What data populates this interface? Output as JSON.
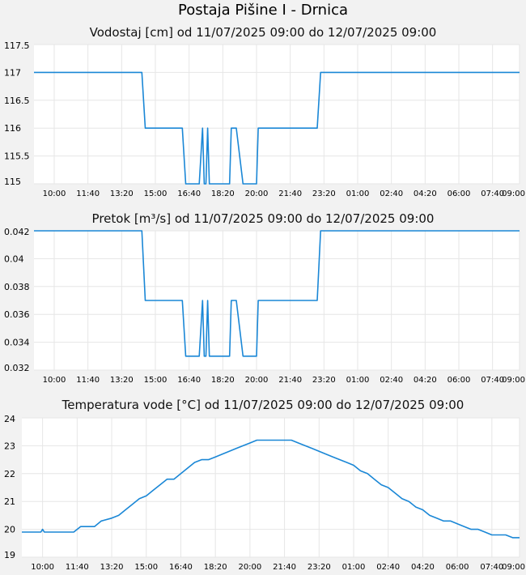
{
  "page": {
    "title": "Postaja Pišine I - Drnica"
  },
  "colors": {
    "line": "#1a87d6",
    "grid": "#e6e6e6",
    "plot_bg": "#ffffff",
    "page_bg": "#f2f2f2"
  },
  "chart_data": [
    {
      "type": "line",
      "title": "Vodostaj [cm] od 11/07/2025 09:00 do 12/07/2025 09:00",
      "ylim": [
        115,
        117.5
      ],
      "yticks": [
        115,
        115.5,
        116,
        116.5,
        117,
        117.5
      ],
      "ytick_labels": [
        "115",
        "115.5",
        "116",
        "116.5",
        "117",
        "117.5"
      ],
      "xlim": [
        0,
        1440
      ],
      "xticks": [
        60,
        160,
        260,
        360,
        460,
        560,
        660,
        760,
        860,
        960,
        1060,
        1160,
        1260,
        1360,
        1440
      ],
      "xtick_labels": [
        "10:00",
        "11:40",
        "13:20",
        "15:00",
        "16:40",
        "18:20",
        "20:00",
        "21:40",
        "23:20",
        "01:00",
        "02:40",
        "04:20",
        "06:00",
        "07:40",
        "09:00"
      ],
      "grid": true,
      "series": [
        {
          "x": [
            0,
            320,
            330,
            440,
            450,
            490,
            500,
            505,
            510,
            515,
            520,
            525,
            530,
            580,
            585,
            595,
            600,
            620,
            625,
            660,
            665,
            840,
            850,
            1440
          ],
          "values": [
            117,
            117,
            116,
            116,
            115,
            115,
            116,
            115,
            115,
            116,
            115,
            115,
            115,
            115,
            116,
            116,
            116,
            115,
            115,
            115,
            116,
            116,
            117,
            117
          ]
        }
      ]
    },
    {
      "type": "line",
      "title": "Pretok [m³/s] od 11/07/2025 09:00 do 12/07/2025 09:00",
      "ylim": [
        0.032,
        0.042
      ],
      "yticks": [
        0.032,
        0.034,
        0.036,
        0.038,
        0.04,
        0.042
      ],
      "ytick_labels": [
        "0.032",
        "0.034",
        "0.036",
        "0.038",
        "0.04",
        "0.042"
      ],
      "xlim": [
        0,
        1440
      ],
      "xticks": [
        60,
        160,
        260,
        360,
        460,
        560,
        660,
        760,
        860,
        960,
        1060,
        1160,
        1260,
        1360,
        1440
      ],
      "xtick_labels": [
        "10:00",
        "11:40",
        "13:20",
        "15:00",
        "16:40",
        "18:20",
        "20:00",
        "21:40",
        "23:20",
        "01:00",
        "02:40",
        "04:20",
        "06:00",
        "07:40",
        "09:00"
      ],
      "grid": true,
      "series": [
        {
          "x": [
            0,
            320,
            330,
            440,
            450,
            490,
            500,
            505,
            510,
            515,
            520,
            525,
            530,
            580,
            585,
            595,
            600,
            620,
            625,
            660,
            665,
            840,
            850,
            1440
          ],
          "values": [
            0.042,
            0.042,
            0.037,
            0.037,
            0.033,
            0.033,
            0.037,
            0.033,
            0.033,
            0.037,
            0.033,
            0.033,
            0.033,
            0.033,
            0.037,
            0.037,
            0.037,
            0.033,
            0.033,
            0.033,
            0.037,
            0.037,
            0.042,
            0.042
          ]
        }
      ]
    },
    {
      "type": "line",
      "title": "Temperatura vode [°C] od 11/07/2025 09:00 do 12/07/2025 09:00",
      "ylim": [
        19,
        24
      ],
      "yticks": [
        19,
        20,
        21,
        22,
        23,
        24
      ],
      "ytick_labels": [
        "19",
        "20",
        "21",
        "22",
        "23",
        "24"
      ],
      "xlim": [
        0,
        1440
      ],
      "xticks": [
        60,
        160,
        260,
        360,
        460,
        560,
        660,
        760,
        860,
        960,
        1060,
        1160,
        1260,
        1360,
        1440
      ],
      "xtick_labels": [
        "10:00",
        "11:40",
        "13:20",
        "15:00",
        "16:40",
        "18:20",
        "20:00",
        "21:40",
        "23:20",
        "01:00",
        "02:40",
        "04:20",
        "06:00",
        "07:40",
        "09:00"
      ],
      "grid": true,
      "series": [
        {
          "x": [
            0,
            55,
            60,
            65,
            150,
            170,
            210,
            230,
            260,
            280,
            300,
            320,
            340,
            360,
            380,
            400,
            420,
            440,
            460,
            480,
            500,
            520,
            540,
            560,
            580,
            600,
            620,
            640,
            660,
            680,
            700,
            720,
            740,
            760,
            780,
            800,
            820,
            840,
            860,
            880,
            900,
            920,
            940,
            960,
            980,
            1000,
            1020,
            1040,
            1060,
            1080,
            1100,
            1120,
            1140,
            1160,
            1180,
            1200,
            1220,
            1240,
            1260,
            1280,
            1300,
            1320,
            1340,
            1360,
            1380,
            1400,
            1420,
            1440
          ],
          "values": [
            19.9,
            19.9,
            20.0,
            19.9,
            19.9,
            20.1,
            20.1,
            20.3,
            20.4,
            20.5,
            20.7,
            20.9,
            21.1,
            21.2,
            21.4,
            21.6,
            21.8,
            21.8,
            22.0,
            22.2,
            22.4,
            22.5,
            22.5,
            22.6,
            22.7,
            22.8,
            22.9,
            23.0,
            23.1,
            23.2,
            23.2,
            23.2,
            23.2,
            23.2,
            23.2,
            23.1,
            23.0,
            22.9,
            22.8,
            22.7,
            22.6,
            22.5,
            22.4,
            22.3,
            22.1,
            22.0,
            21.8,
            21.6,
            21.5,
            21.3,
            21.1,
            21.0,
            20.8,
            20.7,
            20.5,
            20.4,
            20.3,
            20.3,
            20.2,
            20.1,
            20.0,
            20.0,
            19.9,
            19.8,
            19.8,
            19.8,
            19.7,
            19.7
          ]
        }
      ]
    }
  ]
}
